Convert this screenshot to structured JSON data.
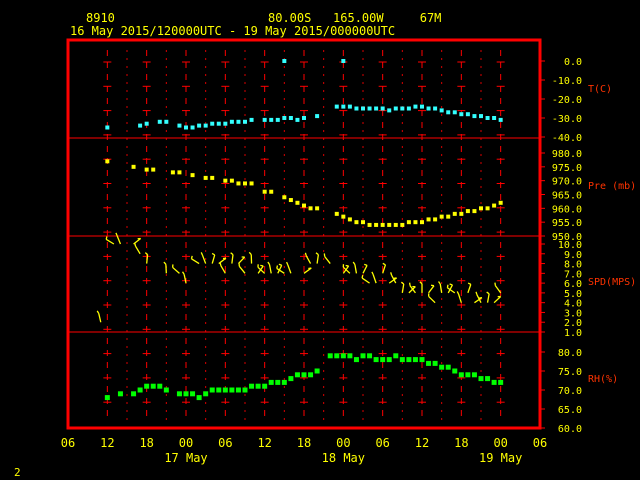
{
  "header": {
    "station_id": "8910",
    "position": "80.00S   165.00W     67M",
    "time_range": "16 May 2015/120000UTC - 19 May 2015/000000UTC"
  },
  "footer": {
    "page_number": "2"
  },
  "colors": {
    "frame": "#ff0000",
    "axis_text": "#ffff00",
    "label_text": "#ff3300",
    "temperature": "#33ffff",
    "pressure": "#ffff00",
    "wind": "#ffff00",
    "humidity": "#00ff00",
    "grid_marks": "#ff0000"
  },
  "x_axis": {
    "tick_labels": [
      "06",
      "12",
      "18",
      "00",
      "06",
      "12",
      "18",
      "00",
      "06",
      "12",
      "18",
      "00",
      "06"
    ],
    "tick_hours": [
      6,
      12,
      18,
      24,
      30,
      36,
      42,
      48,
      54,
      60,
      66,
      72,
      78
    ],
    "day_labels": [
      {
        "text": "17 May",
        "hour": 24
      },
      {
        "text": "18 May",
        "hour": 48
      },
      {
        "text": "19 May",
        "hour": 72
      }
    ],
    "grid_hours": [
      12,
      15,
      18,
      21,
      24,
      27,
      30,
      33,
      36,
      39,
      42,
      45,
      48,
      51,
      54,
      57,
      60,
      63,
      66,
      69,
      72
    ],
    "unit_note": "hours since 16 May 2015 00UTC"
  },
  "chart_data": [
    {
      "type": "scatter",
      "title": "T(C)",
      "ylabel": "T(C)",
      "ylim": [
        -40,
        0
      ],
      "tick_labels": [
        "0.0",
        "-10.0",
        "-20.0",
        "-30.0",
        "-40.0"
      ],
      "tick_values": [
        0,
        -10,
        -20,
        -30,
        -40
      ],
      "points": [
        [
          12,
          -35
        ],
        [
          17,
          -34
        ],
        [
          18,
          -33
        ],
        [
          20,
          -32
        ],
        [
          21,
          -32
        ],
        [
          23,
          -34
        ],
        [
          24,
          -35
        ],
        [
          25,
          -35
        ],
        [
          26,
          -34
        ],
        [
          27,
          -34
        ],
        [
          28,
          -33
        ],
        [
          29,
          -33
        ],
        [
          30,
          -33
        ],
        [
          31,
          -32
        ],
        [
          32,
          -32
        ],
        [
          33,
          -32
        ],
        [
          34,
          -31
        ],
        [
          36,
          -31
        ],
        [
          37,
          -31
        ],
        [
          38,
          -31
        ],
        [
          39,
          -30
        ],
        [
          40,
          -30
        ],
        [
          41,
          -31
        ],
        [
          42,
          -30
        ],
        [
          44,
          -29
        ],
        [
          47,
          -24
        ],
        [
          48,
          -24
        ],
        [
          49,
          -24
        ],
        [
          50,
          -25
        ],
        [
          51,
          -25
        ],
        [
          52,
          -25
        ],
        [
          53,
          -25
        ],
        [
          54,
          -25
        ],
        [
          55,
          -26
        ],
        [
          56,
          -25
        ],
        [
          57,
          -25
        ],
        [
          58,
          -25
        ],
        [
          59,
          -24
        ],
        [
          60,
          -24
        ],
        [
          61,
          -25
        ],
        [
          62,
          -25
        ],
        [
          63,
          -26
        ],
        [
          64,
          -27
        ],
        [
          65,
          -27
        ],
        [
          66,
          -28
        ],
        [
          67,
          -28
        ],
        [
          68,
          -29
        ],
        [
          69,
          -29
        ],
        [
          70,
          -30
        ],
        [
          71,
          -30
        ],
        [
          72,
          -31
        ],
        [
          39,
          0
        ],
        [
          48,
          0
        ]
      ]
    },
    {
      "type": "scatter",
      "title": "Pre (mb)",
      "ylabel": "Pre (mb)",
      "ylim": [
        950,
        980
      ],
      "tick_labels": [
        "980.0",
        "975.0",
        "970.0",
        "965.0",
        "960.0",
        "955.0",
        "950.0"
      ],
      "tick_values": [
        980,
        975,
        970,
        965,
        960,
        955,
        950
      ],
      "points": [
        [
          12,
          977
        ],
        [
          16,
          975
        ],
        [
          18,
          974
        ],
        [
          19,
          974
        ],
        [
          22,
          973
        ],
        [
          23,
          973
        ],
        [
          25,
          972
        ],
        [
          27,
          971
        ],
        [
          28,
          971
        ],
        [
          30,
          970
        ],
        [
          31,
          970
        ],
        [
          32,
          969
        ],
        [
          33,
          969
        ],
        [
          34,
          969
        ],
        [
          36,
          966
        ],
        [
          37,
          966
        ],
        [
          39,
          964
        ],
        [
          40,
          963
        ],
        [
          41,
          962
        ],
        [
          42,
          961
        ],
        [
          43,
          960
        ],
        [
          44,
          960
        ],
        [
          47,
          958
        ],
        [
          48,
          957
        ],
        [
          49,
          956
        ],
        [
          50,
          955
        ],
        [
          51,
          955
        ],
        [
          52,
          954
        ],
        [
          53,
          954
        ],
        [
          54,
          954
        ],
        [
          55,
          954
        ],
        [
          56,
          954
        ],
        [
          57,
          954
        ],
        [
          58,
          955
        ],
        [
          59,
          955
        ],
        [
          60,
          955
        ],
        [
          61,
          956
        ],
        [
          62,
          956
        ],
        [
          63,
          957
        ],
        [
          64,
          957
        ],
        [
          65,
          958
        ],
        [
          66,
          958
        ],
        [
          67,
          959
        ],
        [
          68,
          959
        ],
        [
          69,
          960
        ],
        [
          70,
          960
        ],
        [
          71,
          961
        ],
        [
          72,
          962
        ]
      ]
    },
    {
      "type": "scatter",
      "title": "SPD(MPS)",
      "ylabel": "SPD(MPS)",
      "ylim": [
        1,
        10
      ],
      "tick_labels": [
        "10.0",
        "9.0",
        "8.0",
        "7.0",
        "6.0",
        "5.0",
        "4.0",
        "3.0",
        "2.0",
        "1.0"
      ],
      "tick_values": [
        10,
        9,
        8,
        7,
        6,
        5,
        4,
        3,
        2,
        1
      ],
      "points": [
        [
          11,
          2
        ],
        [
          13,
          10
        ],
        [
          14,
          10
        ],
        [
          16,
          10
        ],
        [
          17,
          9
        ],
        [
          18,
          8
        ],
        [
          21,
          7
        ],
        [
          23,
          7
        ],
        [
          24,
          6
        ],
        [
          26,
          8
        ],
        [
          27,
          8
        ],
        [
          28,
          8
        ],
        [
          29,
          8
        ],
        [
          30,
          7
        ],
        [
          31,
          8
        ],
        [
          32,
          8
        ],
        [
          33,
          7
        ],
        [
          34,
          8
        ],
        [
          35,
          7
        ],
        [
          36,
          7
        ],
        [
          37,
          7
        ],
        [
          38,
          7
        ],
        [
          39,
          7
        ],
        [
          40,
          7
        ],
        [
          42,
          7
        ],
        [
          43,
          8
        ],
        [
          44,
          8
        ],
        [
          46,
          8
        ],
        [
          48,
          7
        ],
        [
          49,
          7
        ],
        [
          50,
          7
        ],
        [
          51,
          7
        ],
        [
          52,
          6
        ],
        [
          53,
          6
        ],
        [
          54,
          7
        ],
        [
          55,
          6
        ],
        [
          56,
          6
        ],
        [
          57,
          5
        ],
        [
          58,
          5
        ],
        [
          59,
          5
        ],
        [
          60,
          5
        ],
        [
          61,
          5
        ],
        [
          62,
          4
        ],
        [
          63,
          5
        ],
        [
          64,
          5
        ],
        [
          65,
          5
        ],
        [
          66,
          4
        ],
        [
          67,
          5
        ],
        [
          68,
          4
        ],
        [
          69,
          4
        ],
        [
          70,
          4
        ],
        [
          71,
          4
        ],
        [
          72,
          5
        ]
      ]
    },
    {
      "type": "scatter",
      "title": "RH(%)",
      "ylabel": "RH(%)",
      "ylim": [
        60,
        80
      ],
      "tick_labels": [
        "80.0",
        "75.0",
        "70.0",
        "65.0",
        "60.0"
      ],
      "tick_values": [
        80,
        75,
        70,
        65,
        60
      ],
      "points": [
        [
          12,
          68
        ],
        [
          14,
          69
        ],
        [
          16,
          69
        ],
        [
          17,
          70
        ],
        [
          18,
          71
        ],
        [
          19,
          71
        ],
        [
          20,
          71
        ],
        [
          21,
          70
        ],
        [
          23,
          69
        ],
        [
          24,
          69
        ],
        [
          25,
          69
        ],
        [
          26,
          68
        ],
        [
          27,
          69
        ],
        [
          28,
          70
        ],
        [
          29,
          70
        ],
        [
          30,
          70
        ],
        [
          31,
          70
        ],
        [
          32,
          70
        ],
        [
          33,
          70
        ],
        [
          34,
          71
        ],
        [
          35,
          71
        ],
        [
          36,
          71
        ],
        [
          37,
          72
        ],
        [
          38,
          72
        ],
        [
          39,
          72
        ],
        [
          40,
          73
        ],
        [
          41,
          74
        ],
        [
          42,
          74
        ],
        [
          43,
          74
        ],
        [
          44,
          75
        ],
        [
          46,
          79
        ],
        [
          47,
          79
        ],
        [
          48,
          79
        ],
        [
          49,
          79
        ],
        [
          50,
          78
        ],
        [
          51,
          79
        ],
        [
          52,
          79
        ],
        [
          53,
          78
        ],
        [
          54,
          78
        ],
        [
          55,
          78
        ],
        [
          56,
          79
        ],
        [
          57,
          78
        ],
        [
          58,
          78
        ],
        [
          59,
          78
        ],
        [
          60,
          78
        ],
        [
          61,
          77
        ],
        [
          62,
          77
        ],
        [
          63,
          76
        ],
        [
          64,
          76
        ],
        [
          65,
          75
        ],
        [
          66,
          74
        ],
        [
          67,
          74
        ],
        [
          68,
          74
        ],
        [
          69,
          73
        ],
        [
          70,
          73
        ],
        [
          71,
          72
        ],
        [
          72,
          72
        ]
      ]
    }
  ]
}
